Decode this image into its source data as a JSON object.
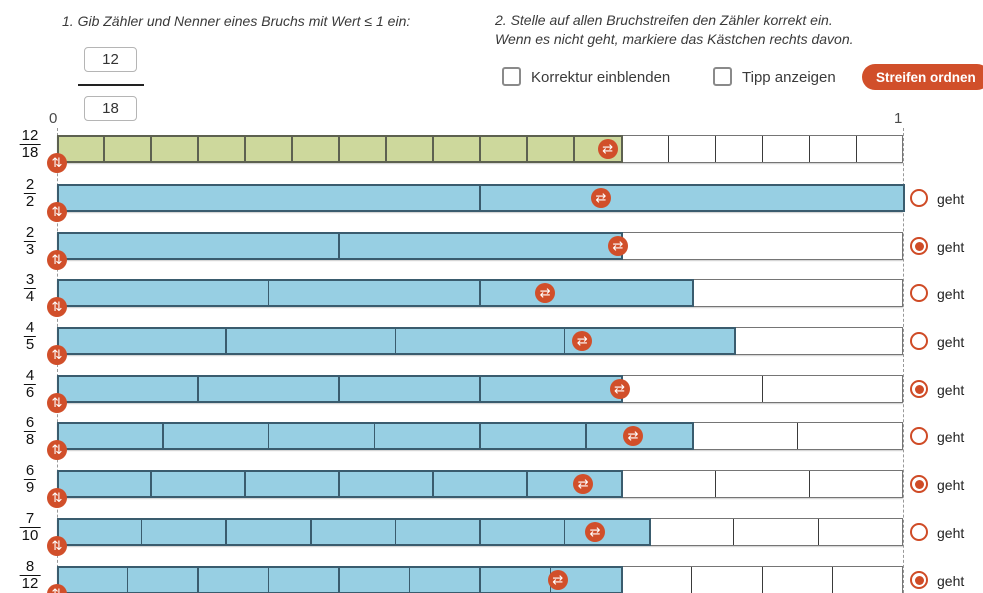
{
  "task1": {
    "label": "1. Gib Zähler und Nenner eines Bruchs mit Wert ≤ 1 ein:",
    "numerator_value": "12",
    "denominator_value": "18"
  },
  "task2": {
    "line1": "2. Stelle auf allen Bruchstreifen den Zähler korrekt ein.",
    "line2": "Wenn es nicht geht, markiere das Kästchen rechts davon."
  },
  "controls": {
    "korrektur_checkbox_label": "Korrektur einblenden",
    "korrektur_checked": false,
    "tipp_checkbox_label": "Tipp anzeigen",
    "tipp_checked": false,
    "order_button_label": "Streifen ordnen"
  },
  "number_line": {
    "start_label": "0",
    "end_label": "1"
  },
  "radio_label": "geht",
  "icons": {
    "strip_move_handle": "swap-vertical-icon",
    "numerator_drag_handle": "swap-horizontal-icon",
    "move_glyph": "⇅",
    "drag_glyph": "⇄"
  },
  "colors": {
    "accent_orange": "#d14f2a",
    "radio_orange": "#cf4b26",
    "green_fill": "#cdd89c",
    "green_border": "#5d6150",
    "blue_fill": "#97cfe3",
    "blue_border": "#3a5c6e",
    "empty_border": "#757575",
    "empty_divider": "#3a3a3a",
    "dashed_line": "#999999"
  },
  "strips": [
    {
      "numerator": "12",
      "denominator": "18",
      "filled_cells": 12,
      "total_cells": 18,
      "color": "green",
      "handle_pos": 0.651,
      "geht_radio": null
    },
    {
      "numerator": "2",
      "denominator": "2",
      "filled_cells": 2,
      "total_cells": 2,
      "color": "blue",
      "handle_pos": 0.643,
      "geht_radio": false
    },
    {
      "numerator": "2",
      "denominator": "3",
      "filled_cells": 2,
      "total_cells": 3,
      "color": "blue",
      "handle_pos": 0.663,
      "geht_radio": true
    },
    {
      "numerator": "3",
      "denominator": "4",
      "filled_cells": 3,
      "total_cells": 4,
      "color": "blue",
      "handle_pos": 0.577,
      "geht_radio": false
    },
    {
      "numerator": "4",
      "denominator": "5",
      "filled_cells": 4,
      "total_cells": 5,
      "color": "blue",
      "handle_pos": 0.621,
      "geht_radio": false
    },
    {
      "numerator": "4",
      "denominator": "6",
      "filled_cells": 4,
      "total_cells": 6,
      "color": "blue",
      "handle_pos": 0.665,
      "geht_radio": true
    },
    {
      "numerator": "6",
      "denominator": "8",
      "filled_cells": 6,
      "total_cells": 8,
      "color": "blue",
      "handle_pos": 0.681,
      "geht_radio": false
    },
    {
      "numerator": "6",
      "denominator": "9",
      "filled_cells": 6,
      "total_cells": 9,
      "color": "blue",
      "handle_pos": 0.622,
      "geht_radio": true
    },
    {
      "numerator": "7",
      "denominator": "10",
      "filled_cells": 7,
      "total_cells": 10,
      "color": "blue",
      "handle_pos": 0.636,
      "geht_radio": false
    },
    {
      "numerator": "8",
      "denominator": "12",
      "filled_cells": 8,
      "total_cells": 12,
      "color": "blue",
      "handle_pos": 0.592,
      "geht_radio": true
    }
  ]
}
